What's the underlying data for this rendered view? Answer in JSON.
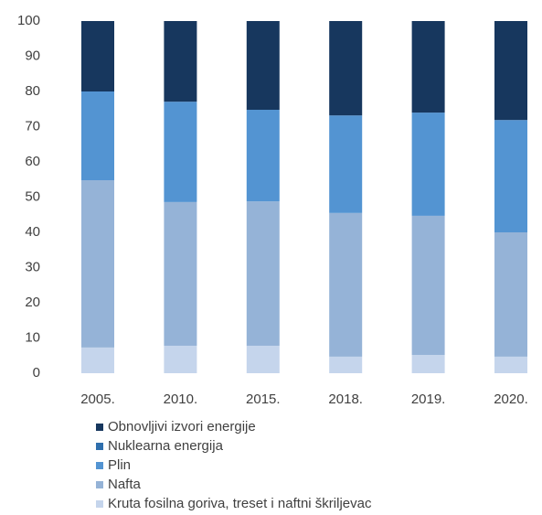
{
  "chart_data": {
    "type": "bar",
    "stacked": true,
    "categories": [
      "2005.",
      "2010.",
      "2015.",
      "2018.",
      "2019.",
      "2020."
    ],
    "series": [
      {
        "name": "Kruta fosilna goriva, treset i naftni škriljevac",
        "color": "#c5d5ec",
        "values": [
          7.3,
          7.8,
          7.8,
          4.7,
          5.2,
          4.7
        ]
      },
      {
        "name": "Nafta",
        "color": "#95b3d7",
        "values": [
          47.5,
          40.8,
          41,
          40.8,
          39.5,
          35.3
        ]
      },
      {
        "name": "Plin",
        "color": "#5394d2",
        "values": [
          25.2,
          28.5,
          26,
          27.7,
          29.3,
          31.9
        ]
      },
      {
        "name": "Nuklearna energija",
        "color": "#2f6fad",
        "values": [
          0,
          0,
          0,
          0,
          0,
          0
        ]
      },
      {
        "name": "Obnovljivi izvori energije",
        "color": "#17375e",
        "values": [
          20,
          22.9,
          25.2,
          26.8,
          26,
          28.1
        ]
      }
    ],
    "ylim": [
      0,
      100
    ],
    "yticks": [
      0,
      10,
      20,
      30,
      40,
      50,
      60,
      70,
      80,
      90,
      100
    ],
    "grid": false,
    "legend": "bottom"
  }
}
